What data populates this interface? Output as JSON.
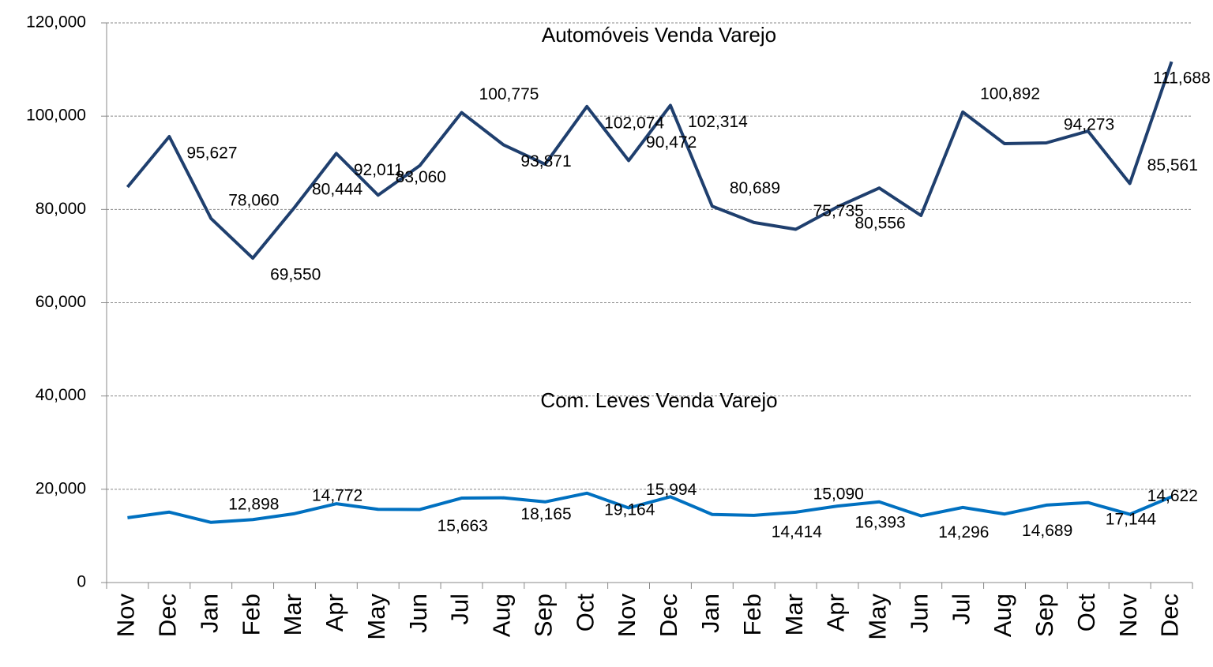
{
  "chart_data": {
    "type": "line",
    "categories": [
      "Nov",
      "Dec",
      "Jan",
      "Feb",
      "Mar",
      "Apr",
      "May",
      "Jun",
      "Jul",
      "Aug",
      "Sep",
      "Oct",
      "Nov",
      "Dec",
      "Jan",
      "Feb",
      "Mar",
      "Apr",
      "May",
      "Jun",
      "Jul",
      "Aug",
      "Sep",
      "Oct",
      "Nov",
      "Dec"
    ],
    "series": [
      {
        "name": "Automóveis Venda Varejo",
        "color": "#1f3f6e",
        "values": [
          84800,
          95627,
          78060,
          69550,
          80444,
          92011,
          83060,
          89400,
          100775,
          93871,
          89700,
          102074,
          90472,
          102314,
          80689,
          77200,
          75735,
          80556,
          84600,
          78700,
          100892,
          94100,
          94273,
          96800,
          85561,
          111688
        ],
        "value_labels": [
          null,
          "95,627",
          "78,060",
          "69,550",
          "80,444",
          "92,011",
          "83,060",
          null,
          "100,775",
          "93,871",
          null,
          "102,074",
          "90,472",
          "102,314",
          "80,689",
          null,
          "75,735",
          "80,556",
          null,
          null,
          "100,892",
          null,
          "94,273",
          null,
          "85,561",
          "111,688"
        ]
      },
      {
        "name": "Com. Leves Venda Varejo",
        "color": "#0070c0",
        "values": [
          13900,
          15100,
          12898,
          13500,
          14772,
          16900,
          15700,
          15663,
          18100,
          18165,
          17300,
          19164,
          15994,
          18400,
          14600,
          14414,
          15090,
          16393,
          17300,
          14296,
          16100,
          14689,
          16600,
          17144,
          14622,
          18400
        ],
        "value_labels": [
          null,
          null,
          "12,898",
          null,
          "14,772",
          null,
          null,
          "15,663",
          null,
          "18,165",
          null,
          "19,164",
          "15,994",
          null,
          null,
          "14,414",
          "15,090",
          "16,393",
          null,
          "14,296",
          null,
          "14,689",
          null,
          "17,144",
          "14,622",
          null
        ]
      }
    ],
    "ylim": [
      0,
      120000
    ],
    "yticks": [
      0,
      {
        "value": 20000,
        "label": "20,000"
      },
      {
        "value": 40000,
        "label": "40,000"
      },
      {
        "value": 60000,
        "label": "60,000"
      },
      {
        "value": 80000,
        "label": "80,000"
      },
      {
        "value": 100000,
        "label": "100,000"
      },
      {
        "value": 120000,
        "label": "120,000"
      }
    ],
    "grid": true
  }
}
